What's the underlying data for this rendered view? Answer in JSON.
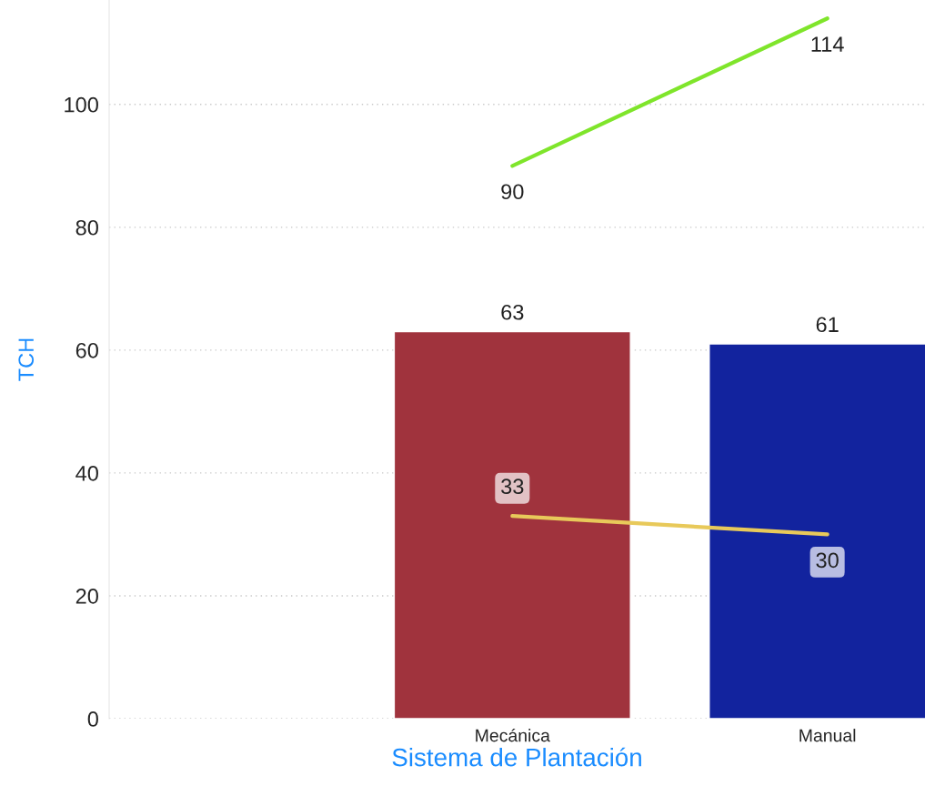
{
  "chart_data": {
    "type": "bar",
    "xlabel": "Sistema de Plantación",
    "ylabel": "TCH",
    "categories": [
      "Mecánica",
      "Manual"
    ],
    "series": [
      {
        "colors": [
          "#a0333d",
          "#12239e"
        ],
        "values": [
          63,
          61
        ]
      },
      {
        "type": "line",
        "color": "#7fe52b",
        "values": [
          90,
          114
        ]
      },
      {
        "type": "line",
        "color": "#e8c95a",
        "values": [
          33,
          30
        ]
      }
    ],
    "ylim": [
      0,
      117
    ],
    "yticks": [
      0,
      20,
      40,
      60,
      80,
      100
    ],
    "grid": "y",
    "data_labels": true,
    "marker": "none"
  }
}
